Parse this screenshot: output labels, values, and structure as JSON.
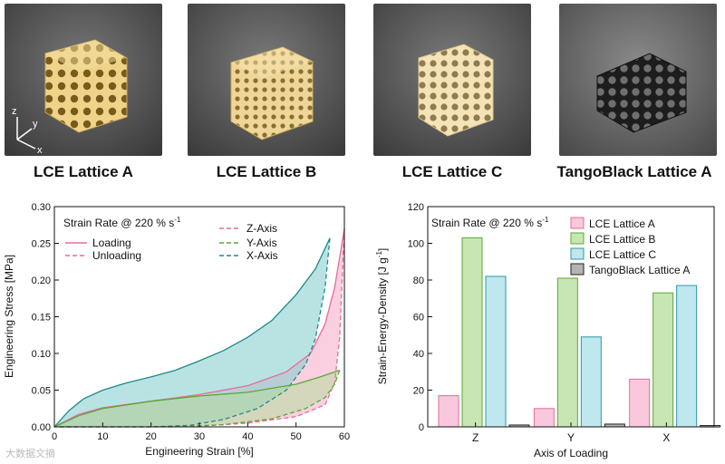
{
  "photos": [
    {
      "label": "LCE Lattice A",
      "color": "#f0d98c"
    },
    {
      "label": "LCE Lattice B",
      "color": "#efd89a"
    },
    {
      "label": "LCE Lattice C",
      "color": "#f3e2b2"
    },
    {
      "label": "TangoBlack Lattice A",
      "color": "#1e1e1e"
    }
  ],
  "axes_triad": {
    "z": "z",
    "y": "y",
    "x": "x"
  },
  "watermark": "大数据文摘",
  "chart_data": [
    {
      "type": "line",
      "title": "",
      "xlabel": "Engineering Strain [%]",
      "ylabel": "Engineering Stress [MPa]",
      "xlim": [
        0,
        60
      ],
      "ylim": [
        0,
        0.3
      ],
      "xticks": [
        "0",
        "10",
        "20",
        "30",
        "40",
        "50",
        "60"
      ],
      "yticks": [
        "0.00",
        "0.05",
        "0.10",
        "0.15",
        "0.20",
        "0.25",
        "0.30"
      ],
      "annotation": "Strain Rate @ 220 % s",
      "annotation_sup": "-1",
      "legend_style": [
        {
          "name": "Loading",
          "dash": "solid"
        },
        {
          "name": "Unloading",
          "dash": "dashed"
        }
      ],
      "legend_axes": [
        {
          "name": "Z-Axis",
          "color": "#e86c9a"
        },
        {
          "name": "Y-Axis",
          "color": "#5aa832"
        },
        {
          "name": "X-Axis",
          "color": "#1f8a8a"
        }
      ],
      "series": [
        {
          "name": "Z-Axis",
          "color": "#e86c9a",
          "fill": "#f5a9c8",
          "loading": [
            [
              0,
              0
            ],
            [
              5,
              0.017
            ],
            [
              10,
              0.026
            ],
            [
              20,
              0.035
            ],
            [
              30,
              0.044
            ],
            [
              40,
              0.056
            ],
            [
              48,
              0.075
            ],
            [
              53,
              0.1
            ],
            [
              56,
              0.14
            ],
            [
              58,
              0.19
            ],
            [
              60,
              0.27
            ]
          ],
          "unloading": [
            [
              60,
              0.27
            ],
            [
              59,
              0.12
            ],
            [
              58,
              0.06
            ],
            [
              56,
              0.03
            ],
            [
              50,
              0.014
            ],
            [
              40,
              0.005
            ],
            [
              30,
              0.001
            ],
            [
              20,
              0
            ],
            [
              0,
              0
            ]
          ]
        },
        {
          "name": "X-Axis",
          "color": "#1f8a8a",
          "fill": "#7fcccc",
          "loading": [
            [
              0,
              0
            ],
            [
              3,
              0.022
            ],
            [
              6,
              0.038
            ],
            [
              10,
              0.05
            ],
            [
              15,
              0.06
            ],
            [
              20,
              0.068
            ],
            [
              25,
              0.077
            ],
            [
              30,
              0.09
            ],
            [
              35,
              0.104
            ],
            [
              40,
              0.122
            ],
            [
              45,
              0.145
            ],
            [
              50,
              0.18
            ],
            [
              54,
              0.215
            ],
            [
              57,
              0.257
            ]
          ],
          "unloading": [
            [
              57,
              0.257
            ],
            [
              56,
              0.19
            ],
            [
              54,
              0.12
            ],
            [
              52,
              0.085
            ],
            [
              48,
              0.05
            ],
            [
              42,
              0.025
            ],
            [
              35,
              0.01
            ],
            [
              28,
              0.002
            ],
            [
              20,
              0
            ],
            [
              0,
              0
            ]
          ]
        },
        {
          "name": "Y-Axis",
          "color": "#5aa832",
          "fill": "#b5dd9c",
          "loading": [
            [
              0,
              0
            ],
            [
              5,
              0.015
            ],
            [
              10,
              0.025
            ],
            [
              20,
              0.035
            ],
            [
              30,
              0.042
            ],
            [
              40,
              0.047
            ],
            [
              50,
              0.058
            ],
            [
              55,
              0.068
            ],
            [
              59,
              0.077
            ]
          ],
          "unloading": [
            [
              59,
              0.077
            ],
            [
              58,
              0.058
            ],
            [
              56,
              0.04
            ],
            [
              52,
              0.025
            ],
            [
              45,
              0.011
            ],
            [
              35,
              0.003
            ],
            [
              25,
              0
            ],
            [
              0,
              0
            ]
          ]
        }
      ]
    },
    {
      "type": "bar",
      "xlabel": "Axis of Loading",
      "ylabel": "Strain-Energy-Density [J g",
      "ylabel_sup": "-1",
      "ylabel_end": "]",
      "ylim": [
        0,
        120
      ],
      "yticks": [
        "0",
        "20",
        "40",
        "60",
        "80",
        "100",
        "120"
      ],
      "categories": [
        "Z",
        "Y",
        "X"
      ],
      "annotation": "Strain Rate @ 220 % s",
      "annotation_sup": "-1",
      "series": [
        {
          "name": "LCE Lattice A",
          "fill": "#f9c8dc",
          "stroke": "#e86c9a",
          "values": [
            17,
            10,
            26
          ]
        },
        {
          "name": "LCE Lattice B",
          "fill": "#c8e6b4",
          "stroke": "#5aa832",
          "values": [
            103,
            81,
            73
          ]
        },
        {
          "name": "LCE Lattice C",
          "fill": "#bfe7ee",
          "stroke": "#2a9aaa",
          "values": [
            82,
            49,
            77
          ]
        },
        {
          "name": "TangoBlack Lattice A",
          "fill": "#b4b4b4",
          "stroke": "#222222",
          "values": [
            1,
            1.5,
            0.7
          ]
        }
      ]
    }
  ]
}
